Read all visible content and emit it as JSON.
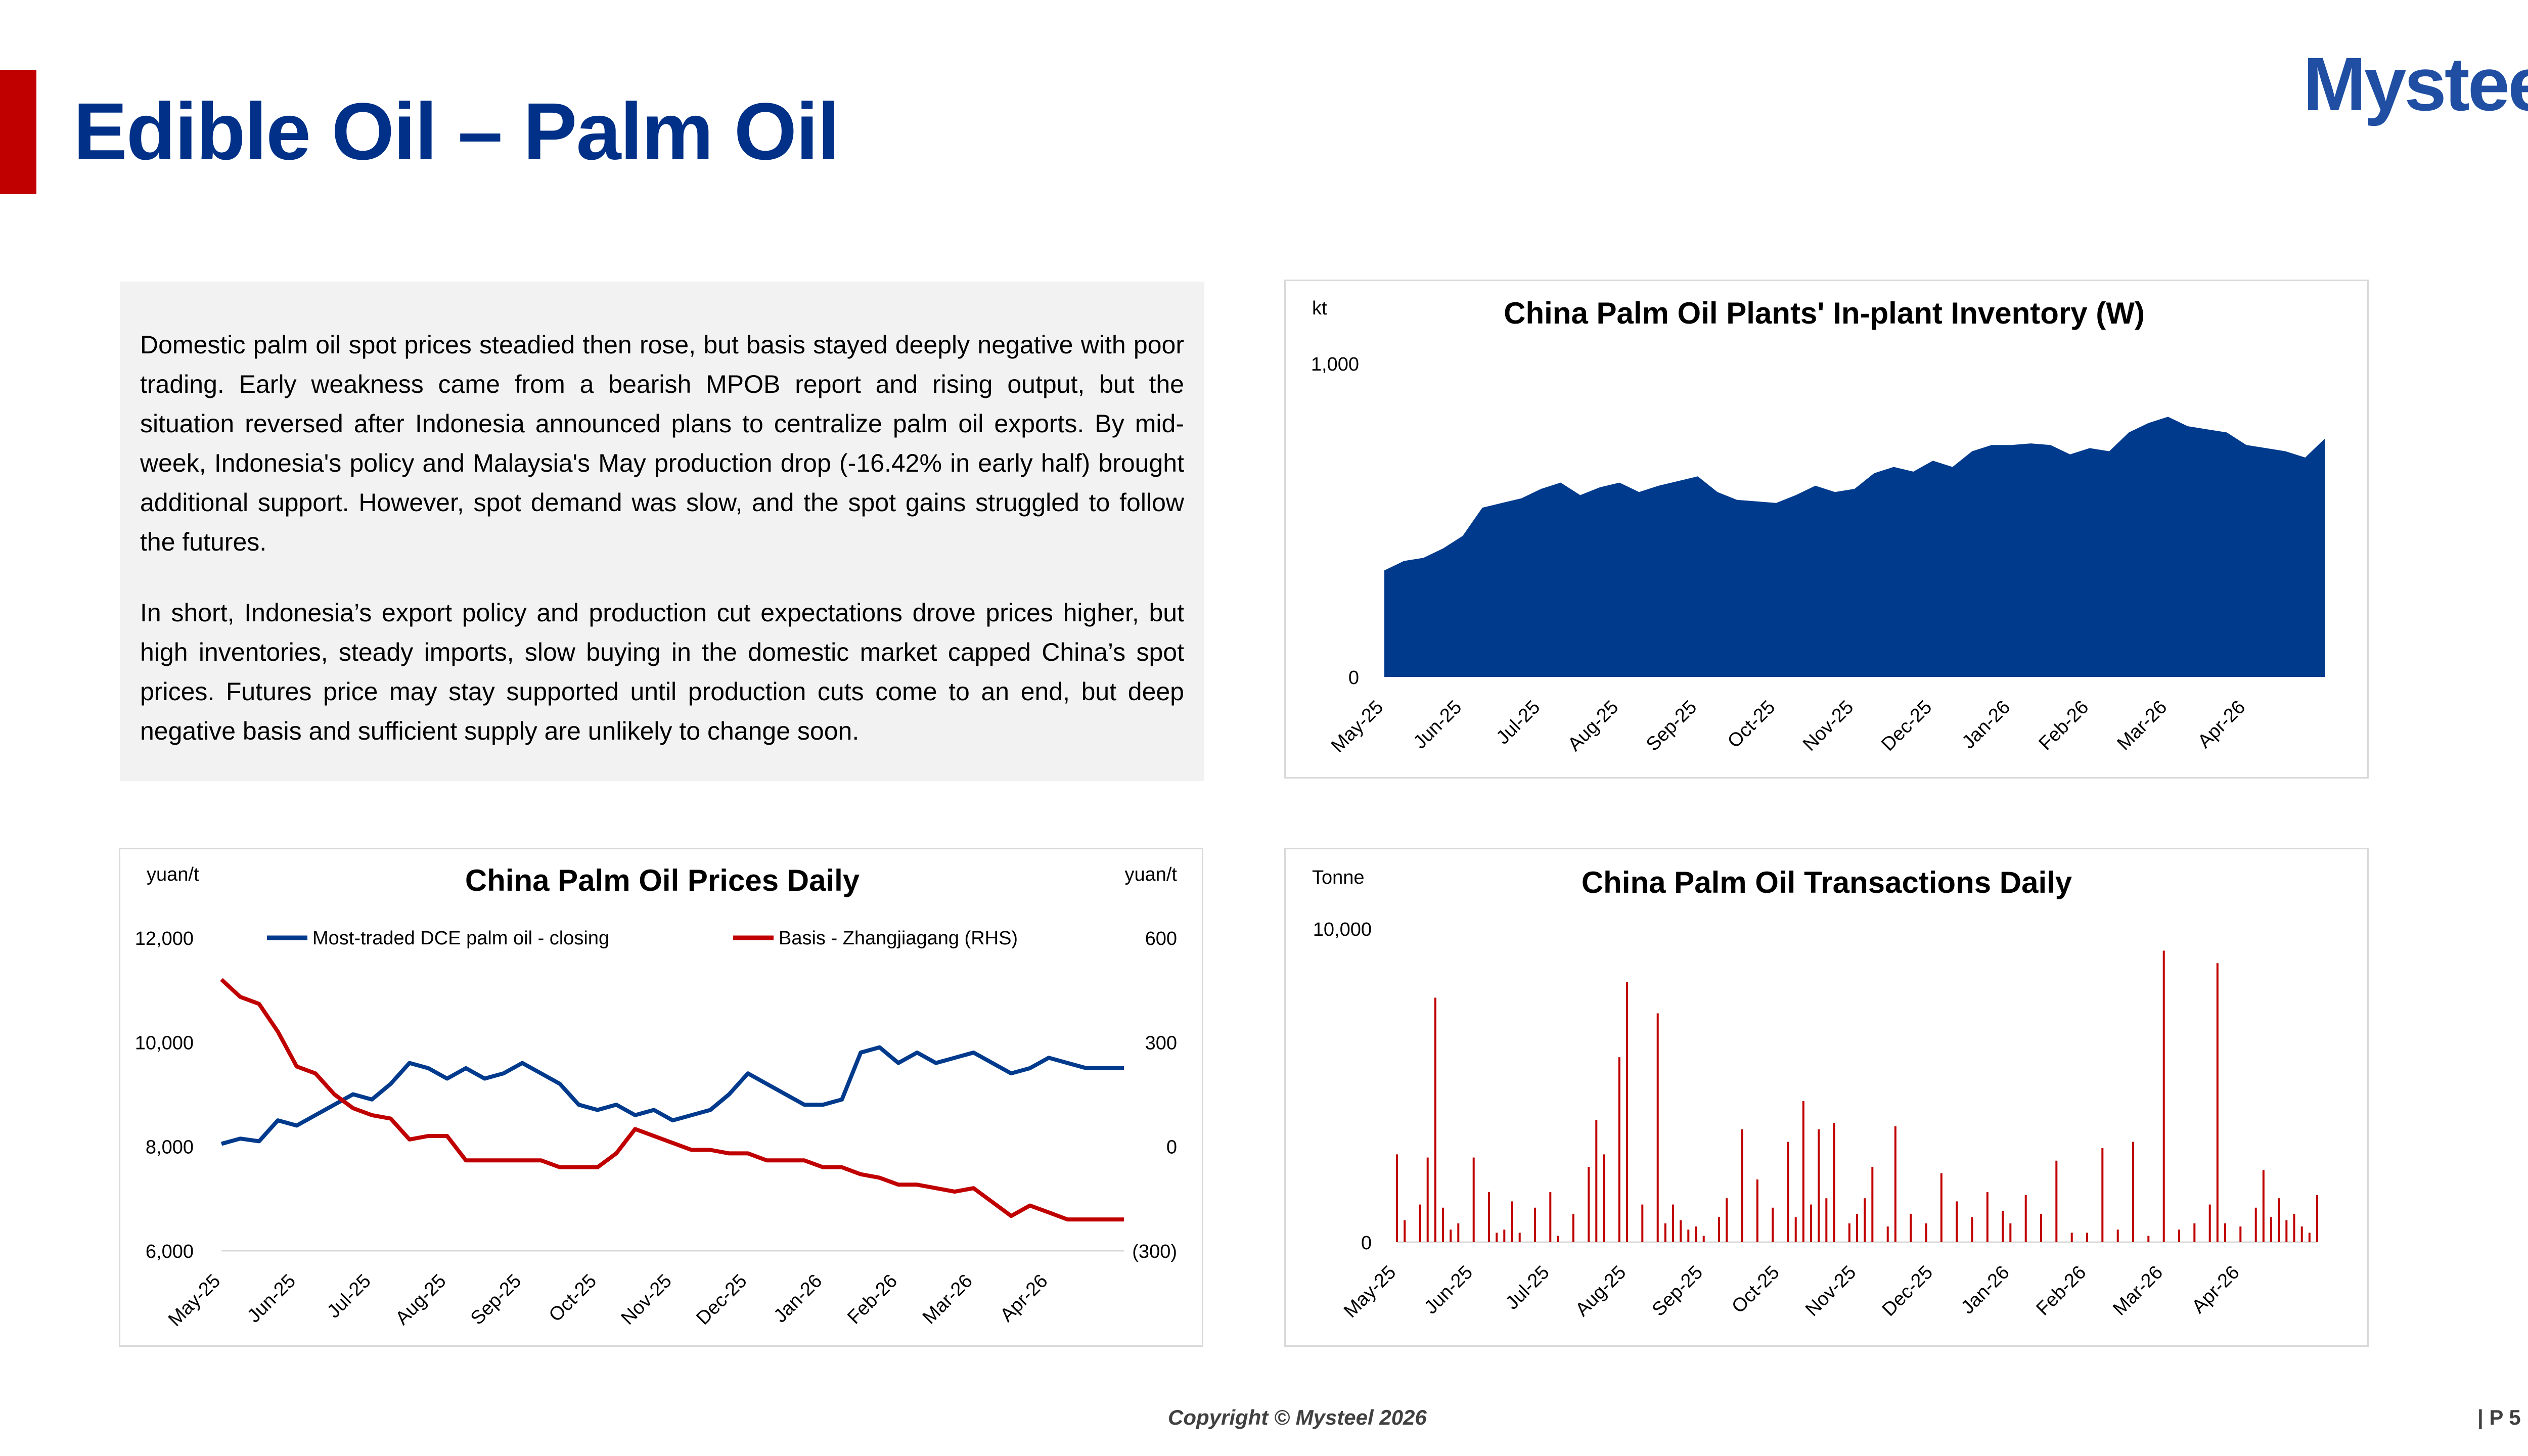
{
  "header": {
    "title": "Edible Oil – Palm Oil",
    "logo_text": "Mysteel",
    "accent_color": "#c00000",
    "title_color": "#003087"
  },
  "commentary": {
    "paragraphs": [
      "Domestic palm oil spot prices steadied then rose, but basis stayed deeply negative with poor trading. Early weakness came from a bearish MPOB report and rising output, but the situation reversed after Indonesia announced plans to centralize palm oil exports. By mid-week, Indonesia's policy and Malaysia's May production drop (-16.42% in early half) brought additional support. However, spot demand was slow, and the spot gains struggled to follow the futures.",
      "In short, Indonesia’s export policy and production cut expectations drove prices higher, but high inventories, steady imports, slow buying in the domestic market capped China’s spot prices. Futures price may stay supported until production cuts come to an end, but deep negative basis and sufficient supply are unlikely to change soon."
    ]
  },
  "footer": {
    "copyright": "Copyright © Mysteel 2026",
    "page": "| P 5"
  },
  "chart_data": [
    {
      "id": "inventory",
      "type": "area",
      "title": "China Palm Oil Plants' In-plant Inventory (W)",
      "unit": "kt",
      "color": "#003a8c",
      "ylim": [
        0,
        1000
      ],
      "y_ticks": [
        "0",
        "1,000"
      ],
      "x_tick_labels": [
        "May-25",
        "Jun-25",
        "Jul-25",
        "Aug-25",
        "Sep-25",
        "Oct-25",
        "Nov-25",
        "Dec-25",
        "Jan-26",
        "Feb-26",
        "Mar-26",
        "Apr-26"
      ],
      "x_range": [
        0,
        12
      ],
      "x": [
        0,
        0.25,
        0.5,
        0.75,
        1.0,
        1.25,
        1.5,
        1.75,
        2.0,
        2.25,
        2.5,
        2.75,
        3.0,
        3.25,
        3.5,
        3.75,
        4.0,
        4.25,
        4.5,
        4.75,
        5.0,
        5.25,
        5.5,
        5.75,
        6.0,
        6.25,
        6.5,
        6.75,
        7.0,
        7.25,
        7.5,
        7.75,
        8.0,
        8.25,
        8.5,
        8.75,
        9.0,
        9.25,
        9.5,
        9.75,
        10.0,
        10.25,
        10.5,
        10.75,
        11.0,
        11.25,
        11.5,
        11.75,
        12.0
      ],
      "values": [
        340,
        370,
        380,
        410,
        450,
        540,
        555,
        570,
        600,
        620,
        580,
        605,
        620,
        590,
        610,
        625,
        640,
        590,
        565,
        560,
        555,
        580,
        610,
        590,
        600,
        650,
        670,
        655,
        690,
        670,
        720,
        740,
        740,
        745,
        740,
        710,
        730,
        720,
        780,
        810,
        830,
        800,
        790,
        780,
        740,
        730,
        720,
        700,
        760
      ]
    },
    {
      "id": "prices",
      "type": "line",
      "title": "China Palm Oil Prices Daily",
      "unit_left": "yuan/t",
      "unit_right": "yuan/t",
      "ylim_left": [
        6000,
        12000
      ],
      "ylim_right": [
        -300,
        600
      ],
      "y_ticks_left": [
        "6,000",
        "8,000",
        "10,000",
        "12,000"
      ],
      "y_ticks_right": [
        "(300)",
        "0",
        "300",
        "600"
      ],
      "x_tick_labels": [
        "May-25",
        "Jun-25",
        "Jul-25",
        "Aug-25",
        "Sep-25",
        "Oct-25",
        "Nov-25",
        "Dec-25",
        "Jan-26",
        "Feb-26",
        "Mar-26",
        "Apr-26"
      ],
      "x_range": [
        0,
        12
      ],
      "series": [
        {
          "name": "Most-traded DCE palm oil - closing",
          "axis": "left",
          "color": "#003a8c",
          "x": [
            0,
            0.25,
            0.5,
            0.75,
            1.0,
            1.25,
            1.5,
            1.75,
            2.0,
            2.25,
            2.5,
            2.75,
            3.0,
            3.25,
            3.5,
            3.75,
            4.0,
            4.25,
            4.5,
            4.75,
            5.0,
            5.25,
            5.5,
            5.75,
            6.0,
            6.25,
            6.5,
            6.75,
            7.0,
            7.25,
            7.5,
            7.75,
            8.0,
            8.25,
            8.5,
            8.75,
            9.0,
            9.25,
            9.5,
            9.75,
            10.0,
            10.25,
            10.5,
            10.75,
            11.0,
            11.25,
            11.5,
            11.75,
            12.0
          ],
          "values": [
            8050,
            8150,
            8100,
            8500,
            8400,
            8600,
            8800,
            9000,
            8900,
            9200,
            9600,
            9500,
            9300,
            9500,
            9300,
            9400,
            9600,
            9400,
            9200,
            8800,
            8700,
            8800,
            8600,
            8700,
            8500,
            8600,
            8700,
            9000,
            9400,
            9200,
            9000,
            8800,
            8800,
            8900,
            9800,
            9900,
            9600,
            9800,
            9600,
            9700,
            9800,
            9600,
            9400,
            9500,
            9700,
            9600,
            9500,
            9500,
            9500
          ]
        },
        {
          "name": "Basis - Zhangjiagang (RHS)",
          "axis": "right",
          "color": "#c00000",
          "x": [
            0,
            0.25,
            0.5,
            0.75,
            1.0,
            1.25,
            1.5,
            1.75,
            2.0,
            2.25,
            2.5,
            2.75,
            3.0,
            3.25,
            3.5,
            3.75,
            4.0,
            4.25,
            4.5,
            4.75,
            5.0,
            5.25,
            5.5,
            5.75,
            6.0,
            6.25,
            6.5,
            6.75,
            7.0,
            7.25,
            7.5,
            7.75,
            8.0,
            8.25,
            8.5,
            8.75,
            9.0,
            9.25,
            9.5,
            9.75,
            10.0,
            10.25,
            10.5,
            10.75,
            11.0,
            11.25,
            11.5,
            11.75,
            12.0
          ],
          "values": [
            480,
            430,
            410,
            330,
            230,
            210,
            150,
            110,
            90,
            80,
            20,
            30,
            30,
            -40,
            -40,
            -40,
            -40,
            -40,
            -60,
            -60,
            -60,
            -20,
            50,
            30,
            10,
            -10,
            -10,
            -20,
            -20,
            -40,
            -40,
            -40,
            -60,
            -60,
            -80,
            -90,
            -110,
            -110,
            -120,
            -130,
            -120,
            -160,
            -200,
            -170,
            -190,
            -210,
            -210,
            -210,
            -210
          ]
        }
      ]
    },
    {
      "id": "transactions",
      "type": "bar",
      "title": "China Palm Oil Transactions Daily",
      "unit": "Tonne",
      "color": "#c00000",
      "ylim": [
        0,
        10000
      ],
      "y_ticks": [
        "0",
        "10,000"
      ],
      "x_tick_labels": [
        "May-25",
        "Jun-25",
        "Jul-25",
        "Aug-25",
        "Sep-25",
        "Oct-25",
        "Nov-25",
        "Dec-25",
        "Jan-26",
        "Feb-26",
        "Mar-26",
        "Apr-26"
      ],
      "x_range": [
        0,
        12
      ],
      "x": [
        0.0,
        0.1,
        0.3,
        0.4,
        0.5,
        0.6,
        0.7,
        0.8,
        1.0,
        1.2,
        1.3,
        1.4,
        1.5,
        1.6,
        1.8,
        2.0,
        2.1,
        2.3,
        2.5,
        2.6,
        2.7,
        2.9,
        3.0,
        3.2,
        3.4,
        3.5,
        3.6,
        3.7,
        3.8,
        3.9,
        4.0,
        4.2,
        4.3,
        4.5,
        4.7,
        4.9,
        5.1,
        5.2,
        5.3,
        5.4,
        5.5,
        5.6,
        5.7,
        5.9,
        6.0,
        6.1,
        6.2,
        6.4,
        6.5,
        6.7,
        6.9,
        7.1,
        7.3,
        7.5,
        7.7,
        7.9,
        8.0,
        8.2,
        8.4,
        8.6,
        8.8,
        9.0,
        9.2,
        9.4,
        9.6,
        9.8,
        10.0,
        10.2,
        10.4,
        10.6,
        10.7,
        10.8,
        11.0,
        11.2,
        11.3,
        11.4,
        11.5,
        11.6,
        11.7,
        11.8,
        11.9,
        12.0
      ],
      "values": [
        2800,
        700,
        1200,
        2700,
        7800,
        1100,
        400,
        600,
        2700,
        1600,
        300,
        400,
        1300,
        300,
        1100,
        1600,
        200,
        900,
        2400,
        3900,
        2800,
        5900,
        8300,
        1200,
        7300,
        600,
        1200,
        700,
        400,
        500,
        200,
        800,
        1400,
        3600,
        2000,
        1100,
        3200,
        800,
        4500,
        1200,
        3600,
        1400,
        3800,
        600,
        900,
        1400,
        2400,
        500,
        3700,
        900,
        600,
        2200,
        1300,
        800,
        1600,
        1000,
        600,
        1500,
        900,
        2600,
        300,
        300,
        3000,
        400,
        3200,
        200,
        9300,
        400,
        600,
        1200,
        8900,
        600,
        500,
        1100,
        2300,
        800,
        1400,
        700,
        900,
        500,
        300,
        1500
      ]
    }
  ]
}
